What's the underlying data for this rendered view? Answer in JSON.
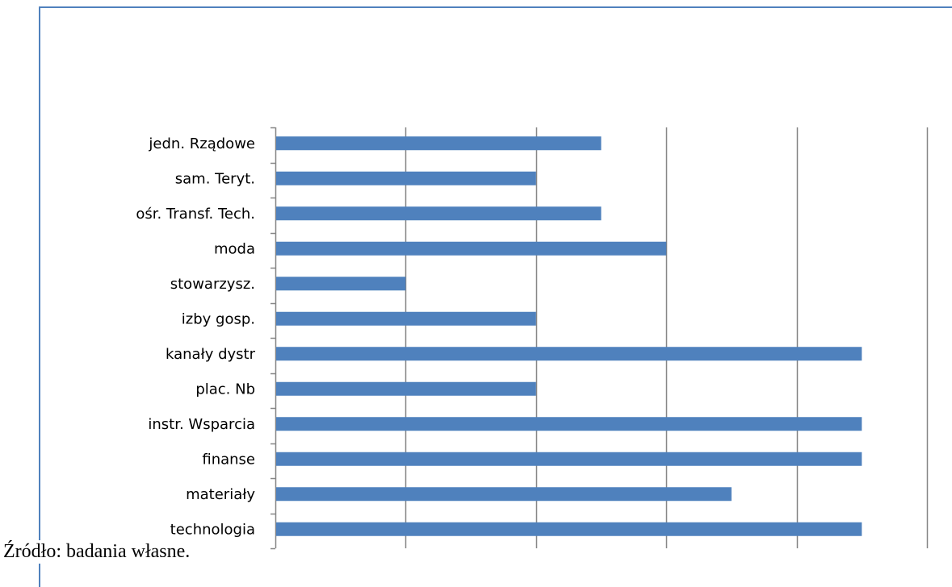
{
  "chart_data": {
    "type": "bar",
    "orientation": "horizontal",
    "categories": [
      "jedn. Rządowe",
      "sam. Teryt.",
      "ośr. Transf. Tech.",
      "moda",
      "stowarzysz.",
      "izby gosp.",
      "kanały dystr",
      "plac. Nb",
      "instr. Wsparcia",
      "finanse",
      "materiały",
      "technologia"
    ],
    "values": [
      2.5,
      2,
      2.5,
      3,
      1,
      2,
      4.5,
      2,
      4.5,
      4.5,
      3.5,
      4.5
    ],
    "xlim": [
      0,
      5
    ],
    "grid": true,
    "bar_color": "#4f81bd",
    "gridline_color": "#868686",
    "frame_color": "#4f81bd"
  },
  "footer": {
    "source": "Źródło: badania własne."
  }
}
